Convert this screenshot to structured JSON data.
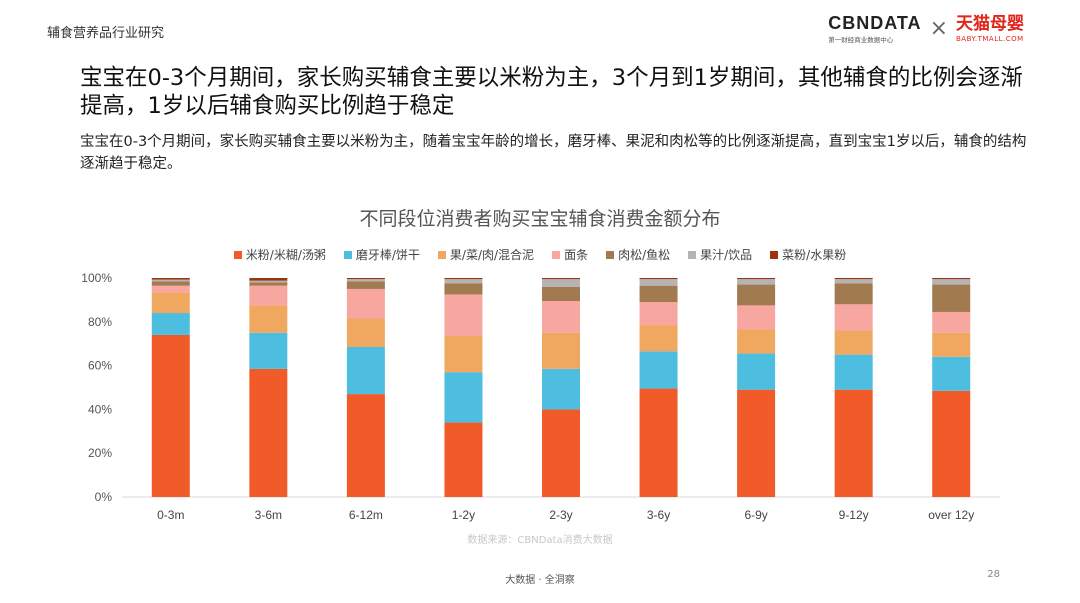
{
  "header": {
    "title": "辅食营养品行业研究"
  },
  "logos": {
    "cbn_text": "CBNDATA",
    "cbn_sub": "第一财经商业数据中心",
    "cross": "×",
    "tmall_text": "天猫母婴",
    "tmall_sub": "BABY.TMALL.COM"
  },
  "headline": "宝宝在0-3个月期间，家长购买辅食主要以米粉为主，3个月到1岁期间，其他辅食的比例会逐渐提高，1岁以后辅食购买比例趋于稳定",
  "subtext": "宝宝在0-3个月期间，家长购买辅食主要以米粉为主，随着宝宝年龄的增长，磨牙棒、果泥和肉松等的比例逐渐提高，直到宝宝1岁以后，辅食的结构逐渐趋于稳定。",
  "source": "数据来源：CBNData消费大数据",
  "footer": "大数据 · 全洞察",
  "page_number": "28",
  "chart_data": {
    "type": "bar",
    "stacked": true,
    "title": "不同段位消费者购买宝宝辅食消费金额分布",
    "categories": [
      "0-3m",
      "3-6m",
      "6-12m",
      "1-2y",
      "2-3y",
      "3-6y",
      "6-9y",
      "9-12y",
      "over 12y"
    ],
    "y_ticks": [
      "0%",
      "20%",
      "40%",
      "60%",
      "80%",
      "100%"
    ],
    "ylim": [
      0,
      100
    ],
    "legend_position": "top",
    "series": [
      {
        "name": "米粉/米糊/汤粥",
        "color": "#f15a29",
        "values": [
          74,
          58.5,
          47,
          34,
          40,
          49.5,
          49,
          49,
          48.5
        ]
      },
      {
        "name": "磨牙棒/饼干",
        "color": "#4dbde0",
        "values": [
          10,
          16.5,
          21.5,
          23,
          18.5,
          17,
          16.5,
          16,
          15.5
        ]
      },
      {
        "name": "果/菜/肉/混合泥",
        "color": "#f0a860",
        "values": [
          9.5,
          12.5,
          13,
          16.5,
          16.5,
          12,
          11,
          11,
          11
        ]
      },
      {
        "name": "面条",
        "color": "#f7a6a0",
        "values": [
          3,
          9,
          13.5,
          19,
          14.5,
          10.5,
          11,
          12,
          9.5
        ]
      },
      {
        "name": "肉松/鱼松",
        "color": "#a17a50",
        "values": [
          2,
          1.5,
          3.5,
          5,
          6.5,
          7.5,
          9.5,
          9.5,
          12.5
        ]
      },
      {
        "name": "果汁/饮品",
        "color": "#b4b4b4",
        "values": [
          0.8,
          0.8,
          1,
          2,
          3.5,
          3,
          2.5,
          2,
          2.5
        ]
      },
      {
        "name": "菜粉/水果粉",
        "color": "#9b3412",
        "values": [
          0.7,
          1.2,
          0.5,
          0.5,
          0.5,
          0.5,
          0.5,
          0.5,
          0.5
        ]
      }
    ]
  }
}
